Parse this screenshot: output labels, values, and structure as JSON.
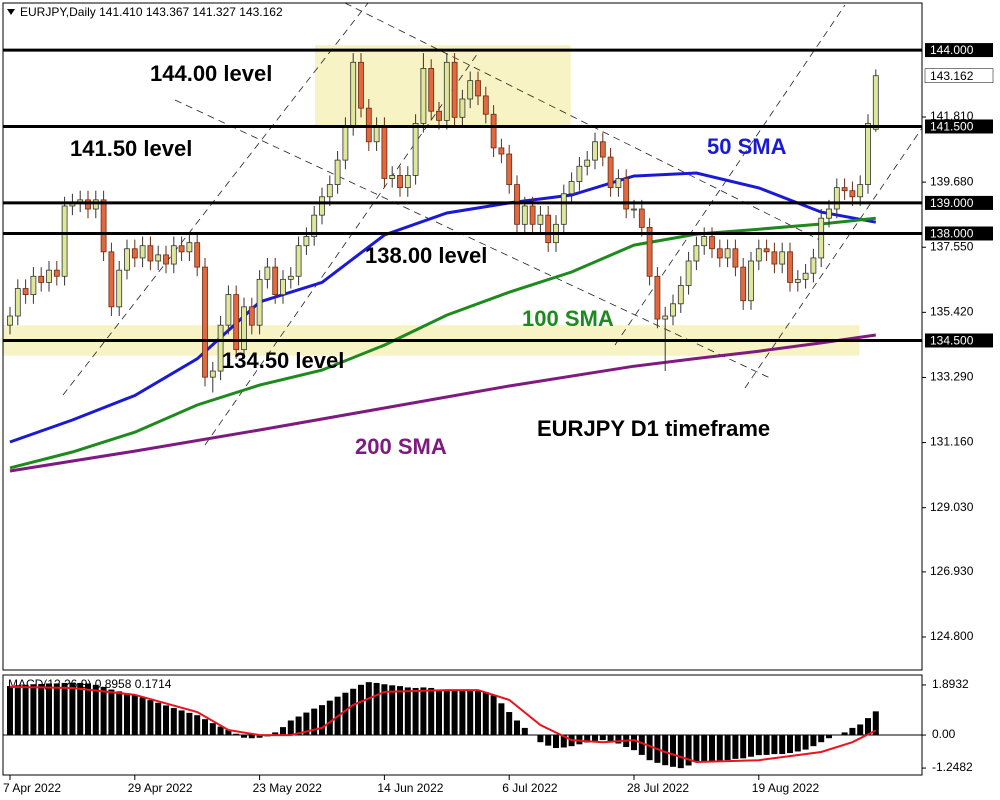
{
  "chart_data": [
    {
      "type": "candlestick",
      "title": "EURJPY,Daily  141.410 143.367 141.327 143.162",
      "categories": [
        "7 Apr 2022",
        null,
        null,
        null,
        null,
        null,
        null,
        null,
        null,
        null,
        null,
        null,
        null,
        null,
        null,
        null,
        "29 Apr 2022",
        null,
        null,
        null,
        null,
        null,
        null,
        null,
        null,
        null,
        null,
        null,
        null,
        null,
        null,
        null,
        "23 May 2022",
        null,
        null,
        null,
        null,
        null,
        null,
        null,
        null,
        null,
        null,
        null,
        null,
        null,
        null,
        null,
        "14 Jun 2022",
        null,
        null,
        null,
        null,
        null,
        null,
        null,
        null,
        null,
        null,
        null,
        null,
        null,
        null,
        null,
        "6 Jul 2022",
        null,
        null,
        null,
        null,
        null,
        null,
        null,
        null,
        null,
        null,
        null,
        null,
        null,
        null,
        null,
        "28 Jul 2022",
        null,
        null,
        null,
        null,
        null,
        null,
        null,
        null,
        null,
        null,
        null,
        null,
        null,
        null,
        null,
        "19 Aug 2022",
        null,
        null,
        null,
        null,
        null,
        null,
        null,
        null,
        null,
        null,
        null,
        null,
        null,
        null,
        null
      ],
      "open": [
        135.0,
        135.3,
        136.2,
        136.0,
        136.6,
        136.4,
        136.8,
        136.6,
        138.9,
        139.0,
        139.1,
        138.8,
        139.1,
        137.4,
        135.6,
        136.8,
        137.5,
        137.2,
        137.6,
        137.1,
        137.3,
        137.0,
        137.6,
        137.4,
        137.7,
        136.9,
        133.3,
        133.5,
        135.0,
        136.0,
        134.2,
        135.6,
        135.0,
        136.5,
        136.9,
        136.0,
        136.5,
        136.6,
        137.6,
        137.9,
        138.6,
        139.2,
        139.6,
        140.4,
        141.5,
        143.6,
        142.1,
        141.0,
        141.5,
        139.8,
        139.9,
        139.5,
        139.9,
        141.6,
        143.4,
        142.0,
        141.7,
        143.6,
        141.8,
        142.4,
        143.0,
        142.5,
        141.9,
        140.8,
        140.6,
        139.6,
        138.3,
        138.9,
        138.3,
        138.6,
        137.7,
        138.3,
        139.3,
        139.7,
        140.2,
        140.4,
        141.0,
        140.5,
        139.5,
        139.8,
        138.8,
        138.8,
        138.2,
        136.6,
        135.2,
        135.3,
        135.7,
        136.3,
        137.1,
        137.6,
        137.9,
        137.5,
        137.2,
        137.5,
        136.9,
        135.8,
        137.1,
        137.5,
        137.4,
        137.0,
        137.4,
        136.4,
        136.5,
        136.7,
        137.2,
        138.5,
        138.8,
        139.5,
        139.4,
        139.2,
        139.6,
        141.41
      ],
      "high": [
        135.6,
        136.5,
        136.5,
        136.9,
        136.9,
        137.1,
        137.1,
        139.2,
        139.3,
        139.4,
        139.4,
        139.4,
        139.4,
        137.7,
        137.1,
        137.8,
        137.8,
        137.9,
        137.9,
        137.6,
        137.6,
        137.9,
        137.9,
        138.0,
        138.0,
        137.2,
        133.8,
        135.3,
        136.3,
        136.3,
        135.9,
        135.9,
        136.8,
        137.2,
        137.2,
        136.8,
        136.9,
        137.9,
        138.2,
        138.9,
        139.5,
        139.9,
        140.7,
        141.8,
        143.9,
        143.9,
        142.4,
        141.8,
        141.8,
        140.2,
        140.2,
        140.2,
        141.9,
        143.9,
        143.7,
        142.3,
        143.9,
        143.9,
        142.7,
        143.3,
        143.3,
        142.8,
        142.2,
        141.1,
        140.9,
        139.9,
        139.2,
        139.2,
        138.9,
        138.9,
        138.6,
        139.6,
        140.0,
        140.5,
        140.7,
        141.3,
        141.3,
        140.8,
        140.1,
        140.1,
        139.1,
        139.1,
        138.5,
        136.9,
        135.6,
        136.0,
        136.6,
        137.4,
        137.9,
        138.2,
        138.2,
        137.8,
        137.8,
        137.8,
        137.2,
        137.4,
        137.8,
        137.8,
        137.7,
        137.7,
        137.7,
        136.8,
        137.0,
        137.5,
        138.8,
        139.1,
        139.8,
        139.8,
        139.7,
        139.9,
        141.9,
        143.367
      ],
      "low": [
        134.7,
        135.0,
        135.7,
        135.7,
        136.1,
        136.1,
        136.3,
        136.3,
        138.6,
        138.7,
        138.5,
        138.5,
        137.1,
        135.3,
        135.3,
        136.5,
        136.9,
        136.9,
        136.8,
        136.8,
        136.7,
        136.7,
        137.1,
        137.1,
        136.6,
        133.0,
        132.8,
        133.2,
        134.7,
        133.9,
        133.9,
        134.7,
        134.7,
        136.2,
        135.7,
        135.7,
        136.2,
        136.3,
        137.3,
        137.6,
        138.3,
        138.9,
        139.3,
        140.1,
        141.2,
        141.8,
        140.7,
        140.7,
        139.5,
        139.5,
        139.2,
        139.2,
        139.6,
        141.3,
        141.7,
        141.4,
        141.4,
        141.5,
        141.5,
        142.1,
        142.2,
        141.6,
        140.5,
        140.3,
        139.3,
        138.0,
        138.0,
        138.0,
        138.0,
        137.4,
        137.4,
        138.0,
        139.0,
        139.4,
        139.9,
        140.1,
        140.2,
        139.2,
        139.2,
        138.5,
        138.5,
        137.9,
        136.3,
        134.9,
        133.5,
        135.0,
        135.4,
        136.0,
        136.8,
        137.3,
        137.2,
        136.9,
        136.9,
        136.6,
        135.5,
        135.5,
        136.8,
        137.1,
        136.7,
        136.7,
        136.1,
        136.1,
        136.2,
        136.4,
        136.9,
        138.2,
        138.5,
        139.1,
        138.9,
        138.9,
        139.3,
        141.327
      ],
      "close": [
        135.3,
        136.2,
        136.0,
        136.6,
        136.4,
        136.8,
        136.6,
        138.9,
        139.0,
        139.1,
        138.8,
        139.1,
        137.4,
        135.6,
        136.8,
        137.5,
        137.2,
        137.6,
        137.1,
        137.3,
        137.0,
        137.6,
        137.4,
        137.7,
        136.9,
        133.3,
        133.5,
        135.0,
        136.0,
        134.2,
        135.6,
        135.0,
        136.5,
        136.9,
        136.0,
        136.5,
        136.6,
        137.6,
        137.9,
        138.6,
        139.2,
        139.6,
        140.4,
        141.5,
        143.6,
        142.1,
        141.0,
        141.5,
        139.8,
        139.9,
        139.5,
        139.9,
        141.6,
        143.4,
        142.0,
        141.7,
        143.6,
        141.8,
        142.4,
        143.0,
        142.5,
        141.9,
        140.8,
        140.6,
        139.6,
        138.3,
        138.9,
        138.3,
        138.6,
        137.7,
        138.3,
        139.3,
        139.7,
        140.2,
        140.4,
        141.0,
        140.5,
        139.5,
        139.8,
        138.8,
        138.8,
        138.2,
        136.6,
        135.2,
        135.3,
        135.7,
        136.3,
        137.1,
        137.6,
        137.9,
        137.5,
        137.2,
        137.5,
        136.9,
        135.8,
        137.1,
        137.5,
        137.4,
        137.0,
        137.4,
        136.4,
        136.5,
        136.7,
        137.2,
        138.5,
        138.8,
        139.5,
        139.4,
        139.2,
        139.6,
        141.6,
        143.162
      ],
      "up_color": "#dfe89a",
      "down_color": "#e2683f",
      "series": [
        {
          "name": "50 SMA",
          "color": "#1a1ad6",
          "x": [
            0,
            8,
            16,
            24,
            32,
            40,
            48,
            56,
            64,
            72,
            80,
            88,
            96,
            104,
            111
          ],
          "values": [
            131.18,
            131.9,
            132.7,
            133.9,
            135.76,
            136.4,
            137.95,
            138.67,
            139.0,
            139.26,
            139.88,
            139.98,
            139.49,
            138.7,
            138.37
          ]
        },
        {
          "name": "100 SMA",
          "color": "#1e8a1e",
          "x": [
            0,
            8,
            16,
            24,
            32,
            40,
            48,
            56,
            64,
            72,
            80,
            88,
            96,
            104,
            111
          ],
          "values": [
            130.33,
            130.85,
            131.5,
            132.39,
            133.04,
            133.53,
            134.35,
            135.33,
            136.08,
            136.74,
            137.62,
            137.98,
            138.14,
            138.31,
            138.5
          ]
        },
        {
          "name": "200 SMA",
          "color": "#7f1a80",
          "x": [
            0,
            16,
            32,
            48,
            64,
            80,
            88,
            96,
            104,
            111
          ],
          "values": [
            130.23,
            130.88,
            131.57,
            132.29,
            133.01,
            133.66,
            133.91,
            134.15,
            134.42,
            134.68
          ]
        }
      ],
      "levels": [
        {
          "value": 144.0,
          "label": "144.000"
        },
        {
          "value": 141.5,
          "label": "141.500"
        },
        {
          "value": 139.0,
          "label": "139.000"
        },
        {
          "value": 138.0,
          "label": "138.000"
        },
        {
          "value": 134.5,
          "label": "134.500"
        }
      ],
      "zones": [
        {
          "x": [
            40,
            71
          ],
          "y": [
            141.48,
            144.16
          ]
        },
        {
          "x": [
            0,
            108
          ],
          "y": [
            134.0,
            135.0
          ]
        }
      ],
      "zone_color": "#f7f3c4",
      "annotations": [
        "144.00 level",
        "141.50 level",
        "138.00 level",
        "134.50 level",
        "EURJPY D1 timeframe"
      ],
      "ylim": [
        123.72,
        145.54
      ],
      "yticks": [
        {
          "value": 141.81,
          "label": "141.810"
        },
        {
          "value": 139.68,
          "label": "139.680"
        },
        {
          "value": 137.55,
          "label": "137.550"
        },
        {
          "value": 135.42,
          "label": "135.420"
        },
        {
          "value": 133.29,
          "label": "133.290"
        },
        {
          "value": 131.16,
          "label": "131.160"
        },
        {
          "value": 129.03,
          "label": "129.030"
        },
        {
          "value": 126.93,
          "label": "126.930"
        },
        {
          "value": 124.8,
          "label": "124.800"
        }
      ]
    },
    {
      "type": "macd",
      "title": "MACD(12,26,9) 0.8958 0.1714",
      "values": [
        1.85,
        1.88,
        1.9,
        1.92,
        1.93,
        1.95,
        1.95,
        1.97,
        1.98,
        1.97,
        1.95,
        1.9,
        1.82,
        1.72,
        1.65,
        1.58,
        1.5,
        1.42,
        1.32,
        1.22,
        1.12,
        1.02,
        0.93,
        0.84,
        0.75,
        0.6,
        0.45,
        0.32,
        0.2,
        0.05,
        -0.1,
        -0.12,
        -0.1,
        -0.05,
        0.1,
        0.3,
        0.55,
        0.7,
        0.85,
        1.0,
        1.13,
        1.3,
        1.45,
        1.6,
        1.75,
        1.9,
        2.0,
        1.97,
        1.92,
        1.88,
        1.85,
        1.8,
        1.78,
        1.8,
        1.78,
        1.72,
        1.72,
        1.7,
        1.7,
        1.72,
        1.7,
        1.62,
        1.5,
        1.2,
        0.87,
        0.55,
        0.27,
        0.0,
        -0.27,
        -0.4,
        -0.49,
        -0.47,
        -0.42,
        -0.35,
        -0.28,
        -0.22,
        -0.19,
        -0.25,
        -0.32,
        -0.45,
        -0.57,
        -0.75,
        -0.95,
        -1.05,
        -1.14,
        -1.2,
        -1.25,
        -1.15,
        -1.02,
        -1.0,
        -0.98,
        -0.96,
        -0.95,
        -0.9,
        -0.88,
        -0.82,
        -0.76,
        -0.75,
        -0.72,
        -0.72,
        -0.68,
        -0.62,
        -0.55,
        -0.42,
        -0.27,
        -0.12,
        0.0,
        0.1,
        0.27,
        0.4,
        0.64,
        0.8958
      ],
      "color": "#000000",
      "signal": {
        "color": "#e8141e",
        "x": [
          0,
          8,
          16,
          24,
          28,
          32,
          36,
          40,
          44,
          48,
          56,
          60,
          64,
          68,
          72,
          76,
          80,
          84,
          88,
          96,
          104,
          108,
          111
        ],
        "values": [
          1.82,
          1.78,
          1.52,
          0.87,
          0.19,
          0.0,
          0.0,
          0.27,
          1.14,
          1.63,
          1.7,
          1.7,
          1.33,
          0.38,
          -0.19,
          -0.27,
          -0.19,
          -0.64,
          -1.02,
          -0.95,
          -0.64,
          -0.27,
          0.1714
        ]
      },
      "ylim": [
        -1.51,
        2.27
      ],
      "yticks": [
        1.8932,
        {
          "value": 0,
          "label": "0.00"
        },
        -1.2482
      ]
    }
  ]
}
